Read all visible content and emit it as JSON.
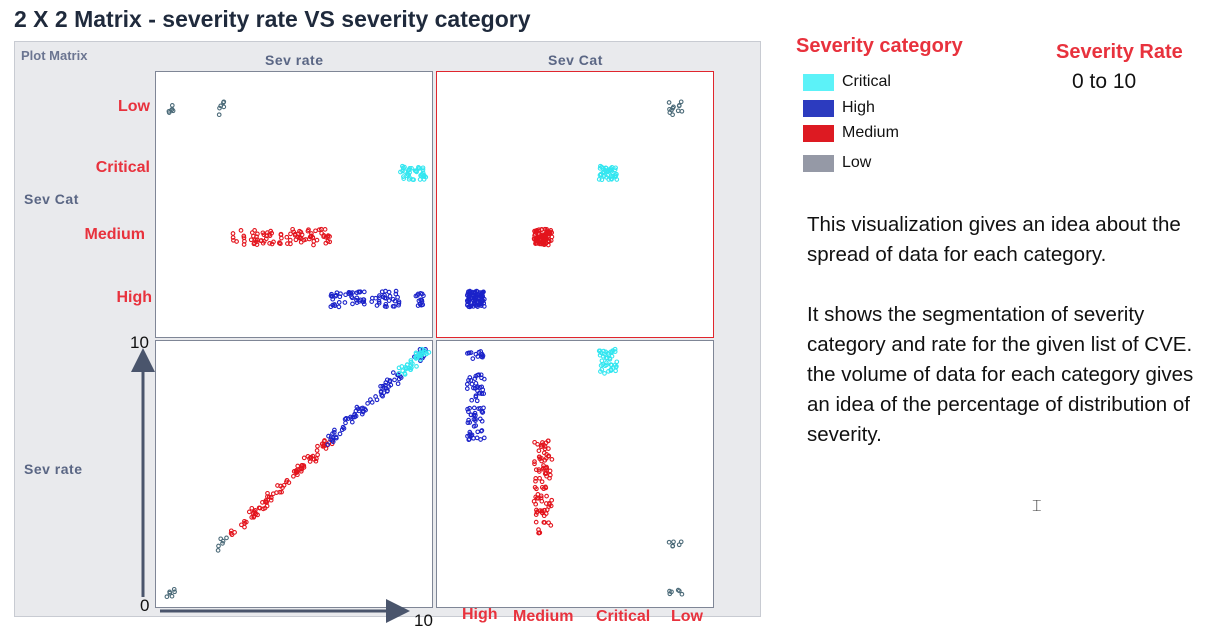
{
  "title": "2 X 2 Matrix - severity rate VS severity category",
  "matrix": {
    "plot_matrix_label": "Plot Matrix",
    "col_headers": [
      "Sev rate",
      "Sev Cat"
    ],
    "row_headers": [
      "Sev Cat",
      "Sev rate"
    ],
    "category_labels": [
      "Low",
      "Critical",
      "Medium",
      "High"
    ],
    "x_category_labels": [
      "High",
      "Medium",
      "Critical",
      "Low"
    ],
    "y_axis_min": "0",
    "y_axis_max": "10",
    "x_axis_max": "10"
  },
  "legend": {
    "title": "Severity category",
    "items": [
      {
        "label": "Critical",
        "color": "#5cf2f8"
      },
      {
        "label": "High",
        "color": "#2c3bbf"
      },
      {
        "label": "Medium",
        "color": "#dd1a22"
      },
      {
        "label": "Low",
        "color": "#9599a6"
      }
    ]
  },
  "severity_rate": {
    "title": "Severity Rate",
    "range": "0 to 10"
  },
  "description": {
    "paragraph1": "This visualization gives an idea about the spread of data for each category.",
    "paragraph2": "It shows the segmentation of severity category and rate for the given list of CVE.",
    "paragraph3": "the volume of data for each category gives an idea of the percentage of distribution of severity."
  },
  "chart_data": {
    "type": "scatter",
    "title": "2 X 2 Matrix - severity rate VS severity category",
    "variables": [
      "Sev rate",
      "Sev Cat"
    ],
    "sev_cat_order": [
      "High",
      "Medium",
      "Critical",
      "Low"
    ],
    "sev_rate_range": [
      0,
      10
    ],
    "colors": {
      "Critical": "#33e6f0",
      "High": "#1b22c9",
      "Medium": "#e3141d",
      "Low": "#4b6a78"
    },
    "series": [
      {
        "name": "Low",
        "rate_min": 0.0,
        "rate_max": 0.2,
        "count": 6
      },
      {
        "name": "Low",
        "rate_min": 1.9,
        "rate_max": 2.2,
        "count": 6
      },
      {
        "name": "Medium",
        "rate_min": 2.5,
        "rate_max": 6.3,
        "count": 90
      },
      {
        "name": "High",
        "rate_min": 6.3,
        "rate_max": 9.0,
        "count": 70
      },
      {
        "name": "High",
        "rate_min": 9.6,
        "rate_max": 9.9,
        "count": 14
      },
      {
        "name": "Critical",
        "rate_min": 9.0,
        "rate_max": 10.0,
        "count": 40
      }
    ]
  }
}
